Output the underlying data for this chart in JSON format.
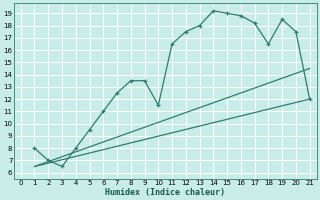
{
  "xlabel": "Humidex (Indice chaleur)",
  "bg_color": "#c8ece8",
  "grid_color": "#ffffff",
  "line_color": "#2e7d6e",
  "xlim": [
    -0.5,
    21.5
  ],
  "ylim": [
    5.5,
    19.8
  ],
  "xticks": [
    0,
    1,
    2,
    3,
    4,
    5,
    6,
    7,
    8,
    9,
    10,
    11,
    12,
    13,
    14,
    15,
    16,
    17,
    18,
    19,
    20,
    21
  ],
  "yticks": [
    6,
    7,
    8,
    9,
    10,
    11,
    12,
    13,
    14,
    15,
    16,
    17,
    18,
    19
  ],
  "curve_x": [
    1,
    2,
    3,
    4,
    5,
    6,
    7,
    8,
    9,
    10,
    11,
    12,
    13,
    14,
    15,
    16,
    17,
    18,
    19,
    20,
    21
  ],
  "curve_y": [
    8,
    7,
    6.5,
    8.0,
    9.5,
    11.0,
    12.5,
    13.5,
    13.5,
    11.5,
    16.5,
    17.5,
    18.0,
    19.2,
    19.0,
    18.8,
    18.2,
    16.5,
    18.5,
    17.5,
    12.0
  ],
  "line2_x": [
    1,
    21
  ],
  "line2_y": [
    6.5,
    14.5
  ],
  "line3_x": [
    1,
    21
  ],
  "line3_y": [
    6.5,
    12.0
  ]
}
